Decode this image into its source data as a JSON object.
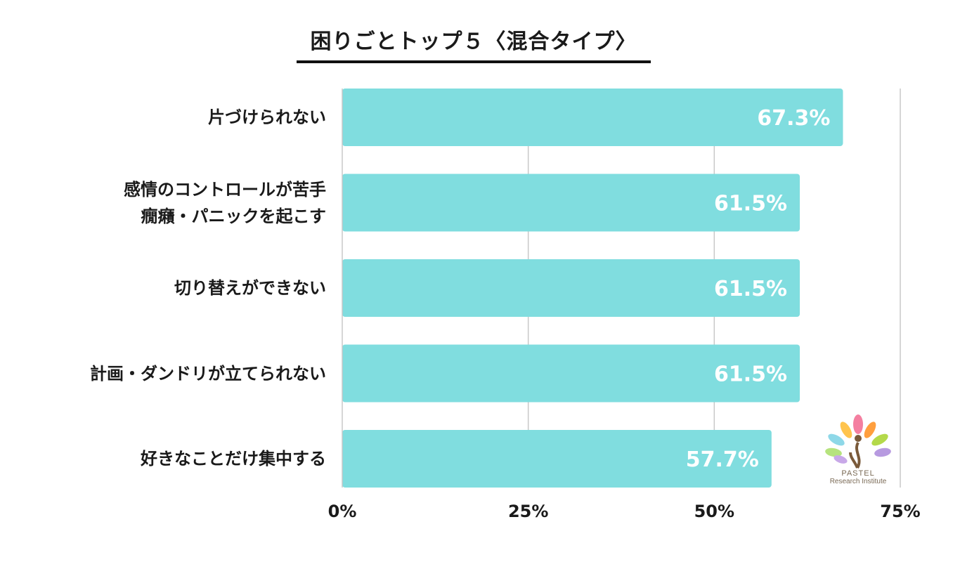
{
  "chart_data": {
    "type": "bar",
    "orientation": "horizontal",
    "title": "困りごとトップ５〈混合タイプ〉",
    "categories": [
      [
        "片づけられない"
      ],
      [
        "感情のコントロールが苦手",
        "癇癪・パニックを起こす"
      ],
      [
        "切り替えができない"
      ],
      [
        "計画・ダンドリが立てられない"
      ],
      [
        "好きなことだけ集中する"
      ]
    ],
    "values": [
      67.3,
      61.5,
      61.5,
      61.5,
      57.7
    ],
    "value_labels": [
      "67.3%",
      "61.5%",
      "61.5%",
      "61.5%",
      "57.7%"
    ],
    "xlim": [
      0,
      75
    ],
    "xticks": [
      0,
      25,
      50,
      75
    ],
    "xtick_labels": [
      "0%",
      "25%",
      "50%",
      "75%"
    ],
    "grid": true,
    "bar_color": "#80dddf",
    "label_color": "#ffffff",
    "grid_color": "#c8c8c8"
  },
  "logo": {
    "name": "PASTEL",
    "subtitle": "Research Institute"
  }
}
